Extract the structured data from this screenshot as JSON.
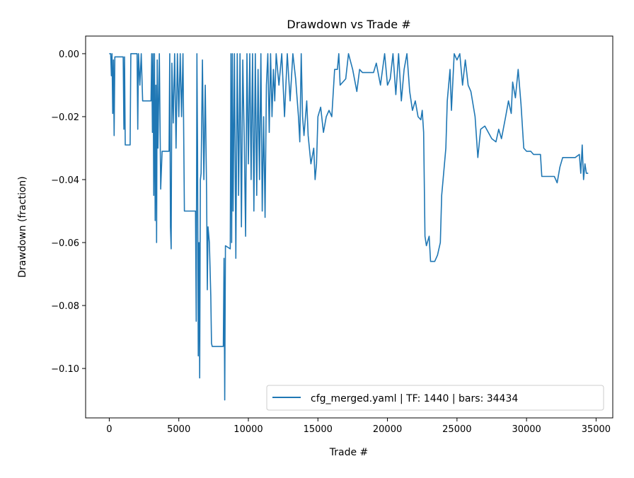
{
  "chart_data": {
    "type": "line",
    "title": "Drawdown vs Trade #",
    "xlabel": "Trade #",
    "ylabel": "Drawdown (fraction)",
    "xlim": [
      -1700,
      36200
    ],
    "ylim": [
      -0.1157,
      0.0056
    ],
    "xticks": [
      0,
      5000,
      10000,
      15000,
      20000,
      25000,
      30000,
      35000
    ],
    "xtick_labels": [
      "0",
      "5000",
      "10000",
      "15000",
      "20000",
      "25000",
      "30000",
      "35000"
    ],
    "yticks": [
      0,
      -0.02,
      -0.04,
      -0.06,
      -0.08,
      -0.1
    ],
    "ytick_labels": [
      "0.00",
      "−0.02",
      "−0.04",
      "−0.06",
      "−0.08",
      "−0.10"
    ],
    "grid": false,
    "legend_position": "bottom-right",
    "series": [
      {
        "name": "cfg_merged.yaml | TF: 1440 | bars: 34434",
        "color": "#1f77b4",
        "points": [
          [
            0,
            0
          ],
          [
            100,
            0
          ],
          [
            150,
            -0.007
          ],
          [
            200,
            0
          ],
          [
            250,
            -0.019
          ],
          [
            300,
            -0.002
          ],
          [
            350,
            -0.026
          ],
          [
            400,
            -0.001
          ],
          [
            1000,
            -0.001
          ],
          [
            1050,
            -0.024
          ],
          [
            1100,
            -0.001
          ],
          [
            1150,
            -0.029
          ],
          [
            1500,
            -0.029
          ],
          [
            1550,
            0
          ],
          [
            2000,
            0
          ],
          [
            2050,
            -0.024
          ],
          [
            2100,
            0
          ],
          [
            2200,
            -0.01
          ],
          [
            2300,
            0
          ],
          [
            2400,
            -0.015
          ],
          [
            3000,
            -0.015
          ],
          [
            3050,
            0
          ],
          [
            3100,
            -0.025
          ],
          [
            3150,
            0
          ],
          [
            3200,
            -0.045
          ],
          [
            3250,
            0
          ],
          [
            3300,
            -0.053
          ],
          [
            3350,
            -0.01
          ],
          [
            3400,
            -0.06
          ],
          [
            3450,
            -0.002
          ],
          [
            3500,
            -0.03
          ],
          [
            3600,
            0
          ],
          [
            3700,
            -0.043
          ],
          [
            3800,
            -0.031
          ],
          [
            4300,
            -0.031
          ],
          [
            4350,
            0
          ],
          [
            4400,
            -0.055
          ],
          [
            4450,
            -0.062
          ],
          [
            4500,
            -0.003
          ],
          [
            4600,
            -0.022
          ],
          [
            4700,
            0
          ],
          [
            4800,
            -0.03
          ],
          [
            4900,
            0
          ],
          [
            5000,
            -0.02
          ],
          [
            5100,
            0
          ],
          [
            5200,
            -0.02
          ],
          [
            5300,
            0
          ],
          [
            5400,
            -0.05
          ],
          [
            6200,
            -0.05
          ],
          [
            6250,
            -0.085
          ],
          [
            6300,
            0
          ],
          [
            6350,
            -0.03
          ],
          [
            6400,
            -0.096
          ],
          [
            6450,
            -0.06
          ],
          [
            6500,
            -0.103
          ],
          [
            6550,
            -0.04
          ],
          [
            6600,
            -0.038
          ],
          [
            6700,
            -0.002
          ],
          [
            6800,
            -0.04
          ],
          [
            6900,
            -0.01
          ],
          [
            7000,
            -0.045
          ],
          [
            7050,
            -0.075
          ],
          [
            7100,
            -0.055
          ],
          [
            7200,
            -0.06
          ],
          [
            7300,
            -0.077
          ],
          [
            7350,
            -0.092
          ],
          [
            7400,
            -0.093
          ],
          [
            8200,
            -0.093
          ],
          [
            8250,
            -0.065
          ],
          [
            8300,
            -0.11
          ],
          [
            8350,
            -0.061
          ],
          [
            8700,
            -0.062
          ],
          [
            8750,
            0
          ],
          [
            8800,
            -0.06
          ],
          [
            8850,
            0
          ],
          [
            8900,
            -0.05
          ],
          [
            9000,
            0
          ],
          [
            9100,
            -0.065
          ],
          [
            9200,
            0
          ],
          [
            9300,
            -0.045
          ],
          [
            9400,
            0
          ],
          [
            9500,
            -0.055
          ],
          [
            9600,
            -0.002
          ],
          [
            9700,
            -0.026
          ],
          [
            9800,
            -0.058
          ],
          [
            9900,
            0
          ],
          [
            10000,
            -0.035
          ],
          [
            10100,
            0
          ],
          [
            10200,
            -0.04
          ],
          [
            10300,
            0
          ],
          [
            10400,
            -0.05
          ],
          [
            10500,
            0
          ],
          [
            10600,
            -0.045
          ],
          [
            10700,
            -0.005
          ],
          [
            10800,
            -0.04
          ],
          [
            10900,
            0
          ],
          [
            11000,
            -0.05
          ],
          [
            11100,
            -0.02
          ],
          [
            11200,
            -0.052
          ],
          [
            11300,
            -0.01
          ],
          [
            11400,
            0
          ],
          [
            11500,
            -0.025
          ],
          [
            11600,
            0
          ],
          [
            11700,
            -0.02
          ],
          [
            11800,
            -0.005
          ],
          [
            11900,
            -0.015
          ],
          [
            12000,
            0
          ],
          [
            12200,
            -0.01
          ],
          [
            12400,
            0
          ],
          [
            12600,
            -0.02
          ],
          [
            12800,
            0
          ],
          [
            13000,
            -0.015
          ],
          [
            13200,
            0
          ],
          [
            13400,
            -0.008
          ],
          [
            13600,
            -0.02
          ],
          [
            13700,
            -0.028
          ],
          [
            13800,
            0
          ],
          [
            13900,
            -0.02
          ],
          [
            14000,
            -0.026
          ],
          [
            14200,
            -0.015
          ],
          [
            14300,
            -0.026
          ],
          [
            14500,
            -0.035
          ],
          [
            14700,
            -0.03
          ],
          [
            14800,
            -0.04
          ],
          [
            14900,
            -0.035
          ],
          [
            15000,
            -0.02
          ],
          [
            15200,
            -0.017
          ],
          [
            15400,
            -0.025
          ],
          [
            15600,
            -0.02
          ],
          [
            15800,
            -0.018
          ],
          [
            16000,
            -0.02
          ],
          [
            16200,
            -0.005
          ],
          [
            16400,
            -0.005
          ],
          [
            16500,
            0
          ],
          [
            16600,
            -0.01
          ],
          [
            17000,
            -0.008
          ],
          [
            17200,
            0
          ],
          [
            17500,
            -0.005
          ],
          [
            17800,
            -0.012
          ],
          [
            18000,
            -0.005
          ],
          [
            18200,
            -0.006
          ],
          [
            19000,
            -0.006
          ],
          [
            19200,
            -0.003
          ],
          [
            19500,
            -0.01
          ],
          [
            19800,
            0
          ],
          [
            20000,
            -0.01
          ],
          [
            20200,
            -0.008
          ],
          [
            20400,
            0
          ],
          [
            20600,
            -0.013
          ],
          [
            20800,
            0
          ],
          [
            21000,
            -0.015
          ],
          [
            21200,
            -0.005
          ],
          [
            21400,
            0
          ],
          [
            21600,
            -0.012
          ],
          [
            21800,
            -0.018
          ],
          [
            22000,
            -0.015
          ],
          [
            22200,
            -0.02
          ],
          [
            22400,
            -0.021
          ],
          [
            22500,
            -0.018
          ],
          [
            22600,
            -0.025
          ],
          [
            22700,
            -0.058
          ],
          [
            22800,
            -0.061
          ],
          [
            23000,
            -0.058
          ],
          [
            23100,
            -0.066
          ],
          [
            23400,
            -0.066
          ],
          [
            23600,
            -0.064
          ],
          [
            23800,
            -0.06
          ],
          [
            23900,
            -0.045
          ],
          [
            24000,
            -0.04
          ],
          [
            24200,
            -0.03
          ],
          [
            24300,
            -0.015
          ],
          [
            24500,
            -0.005
          ],
          [
            24600,
            -0.018
          ],
          [
            24800,
            0
          ],
          [
            25000,
            -0.002
          ],
          [
            25200,
            0
          ],
          [
            25400,
            -0.01
          ],
          [
            25600,
            -0.002
          ],
          [
            25800,
            -0.01
          ],
          [
            26000,
            -0.012
          ],
          [
            26300,
            -0.02
          ],
          [
            26500,
            -0.033
          ],
          [
            26700,
            -0.024
          ],
          [
            27000,
            -0.023
          ],
          [
            27500,
            -0.027
          ],
          [
            27800,
            -0.028
          ],
          [
            28000,
            -0.024
          ],
          [
            28200,
            -0.027
          ],
          [
            28500,
            -0.02
          ],
          [
            28700,
            -0.015
          ],
          [
            28900,
            -0.019
          ],
          [
            29000,
            -0.009
          ],
          [
            29200,
            -0.014
          ],
          [
            29400,
            -0.005
          ],
          [
            29600,
            -0.016
          ],
          [
            29800,
            -0.03
          ],
          [
            30000,
            -0.031
          ],
          [
            30300,
            -0.031
          ],
          [
            30500,
            -0.032
          ],
          [
            31000,
            -0.032
          ],
          [
            31100,
            -0.039
          ],
          [
            32000,
            -0.039
          ],
          [
            32200,
            -0.041
          ],
          [
            32400,
            -0.036
          ],
          [
            32600,
            -0.033
          ],
          [
            33500,
            -0.033
          ],
          [
            33800,
            -0.032
          ],
          [
            33900,
            -0.038
          ],
          [
            34000,
            -0.029
          ],
          [
            34100,
            -0.04
          ],
          [
            34200,
            -0.035
          ],
          [
            34300,
            -0.038
          ],
          [
            34434,
            -0.038
          ]
        ]
      }
    ]
  }
}
